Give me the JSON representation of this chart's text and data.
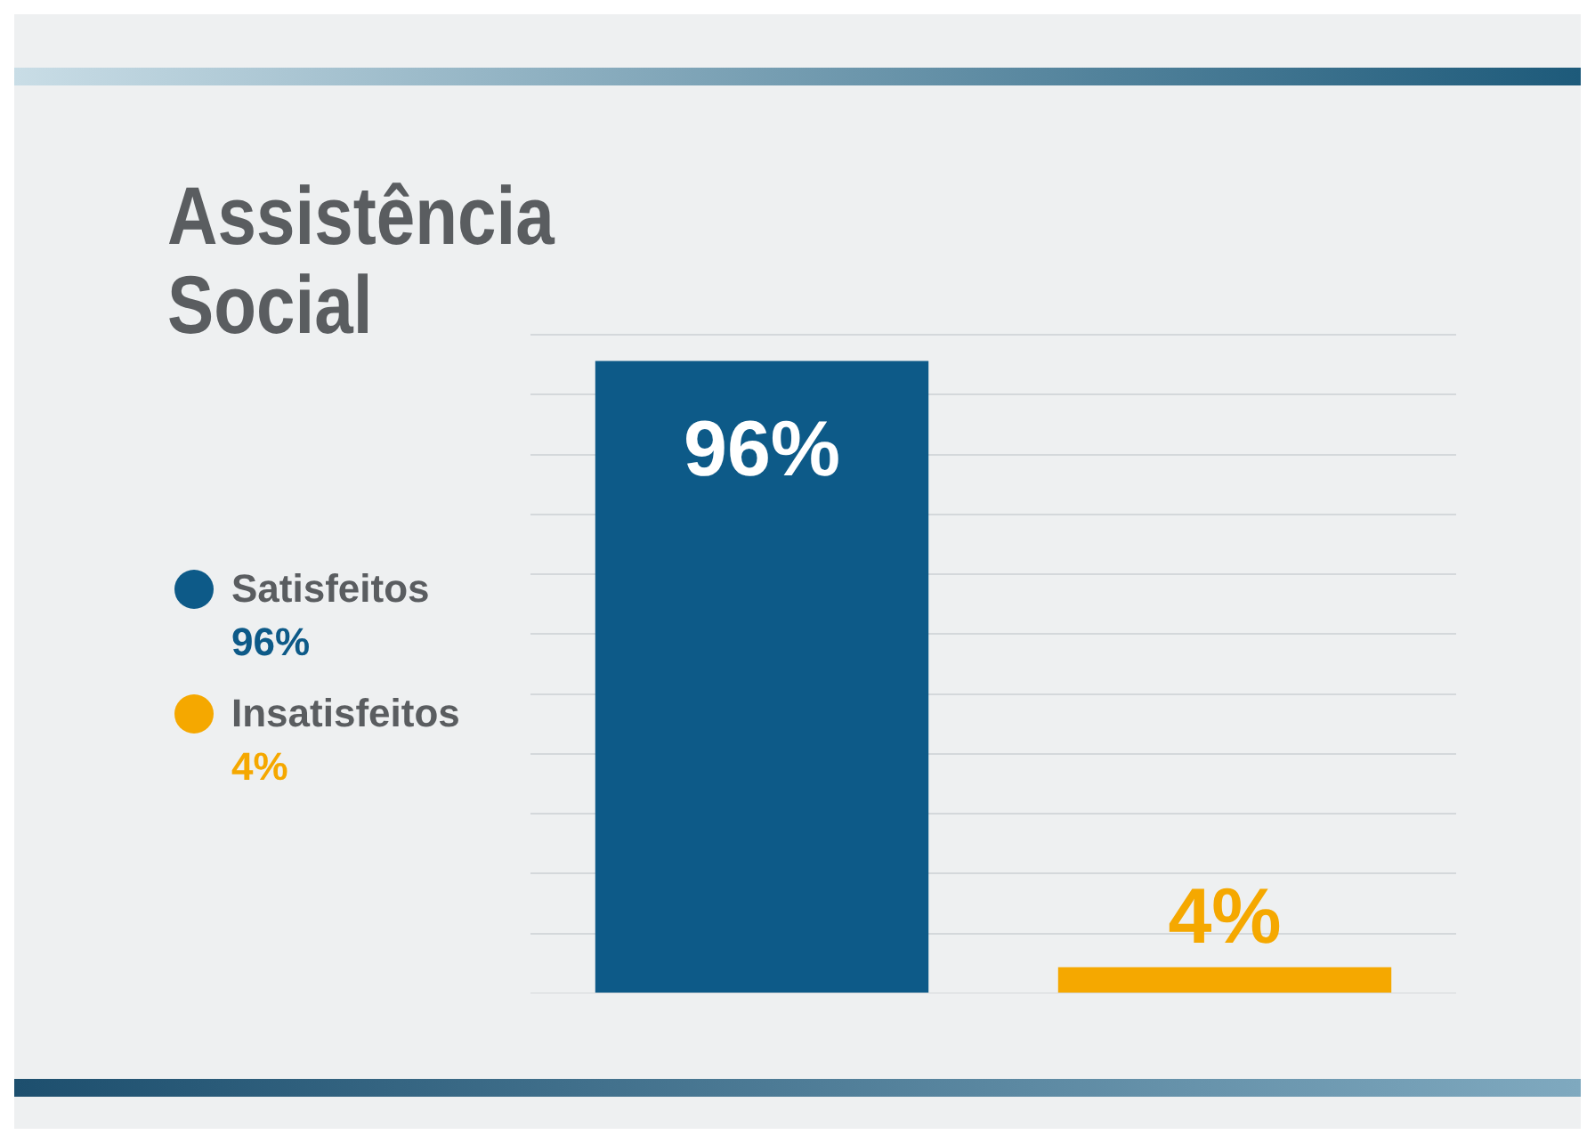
{
  "chart_data": {
    "type": "bar",
    "title": "Assistência\nSocial",
    "categories": [
      null,
      null
    ],
    "stacked": true,
    "series": [
      {
        "name": "Satisfeitos",
        "color": "#0d5a88",
        "values": [
          96,
          null
        ],
        "value_labels": [
          "96%",
          null
        ]
      },
      {
        "name": "Insatisfeitos",
        "color": "#f5a800",
        "values": [
          null,
          4
        ],
        "value_labels": [
          null,
          "4%"
        ]
      }
    ],
    "legend": "left",
    "grid": "y"
  }
}
